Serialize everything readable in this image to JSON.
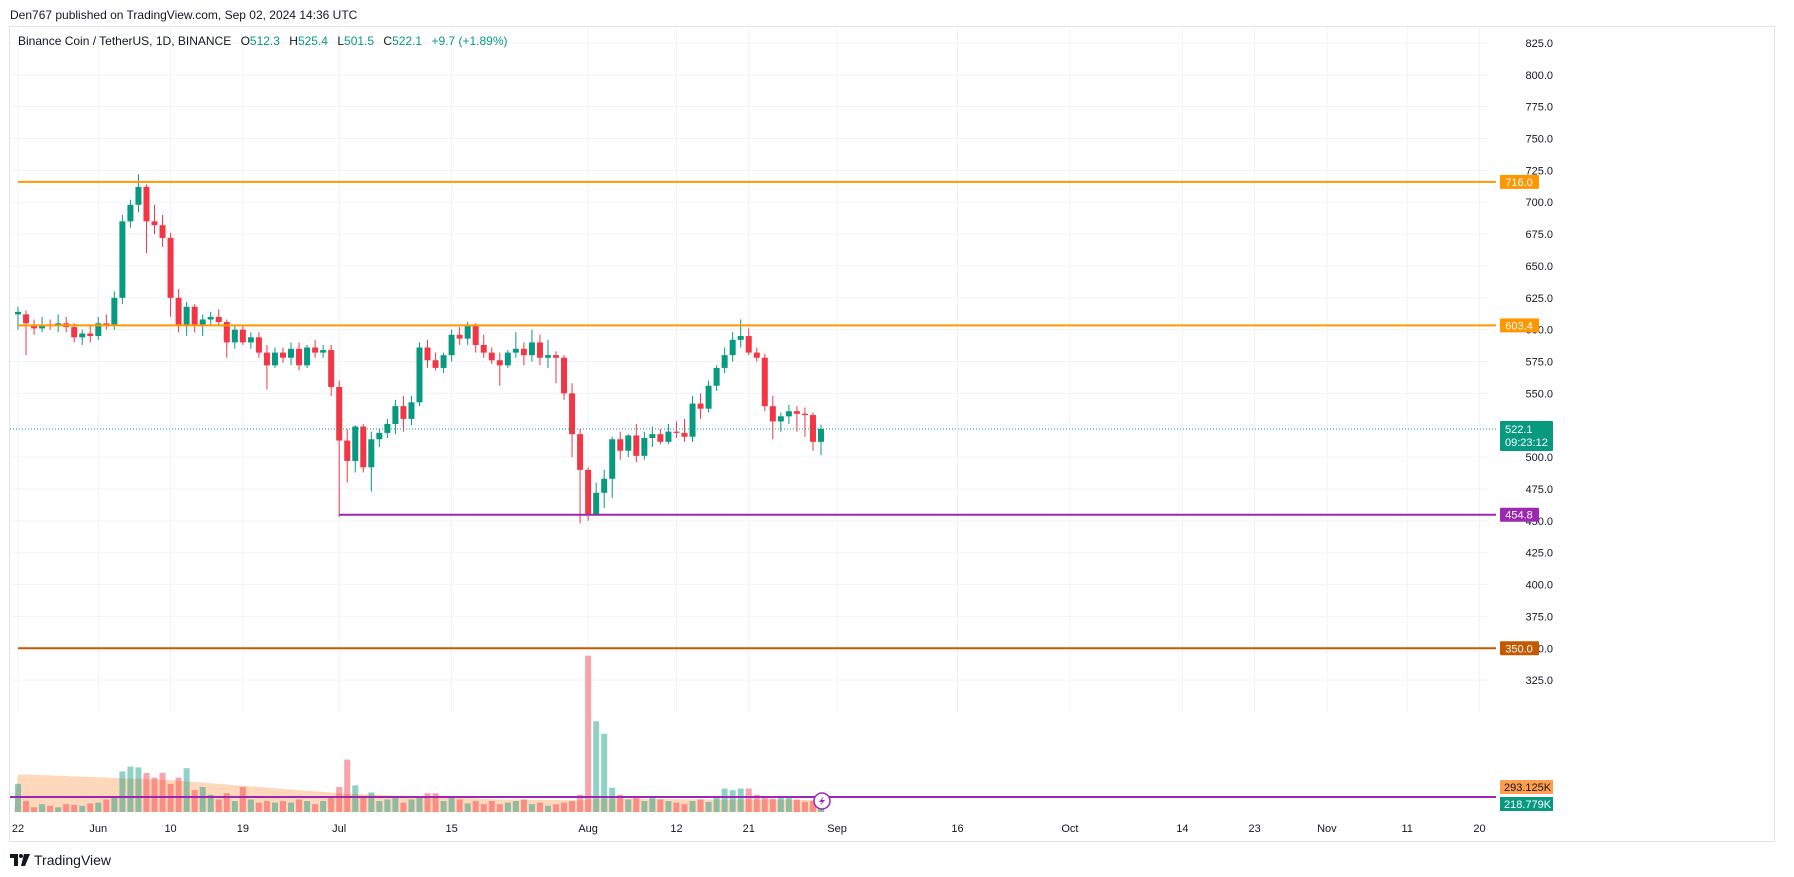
{
  "header": {
    "published_text": "Den767 published on TradingView.com, Sep 02, 2024 14:36 UTC"
  },
  "legend": {
    "symbol": "Binance Coin / TetherUS, 1D, BINANCE",
    "o_label": "O",
    "o_value": "512.3",
    "h_label": "H",
    "h_value": "525.4",
    "l_label": "L",
    "l_value": "501.5",
    "c_label": "C",
    "c_value": "522.1",
    "change": "+9.7 (+1.89%)"
  },
  "footer": {
    "brand": "TradingView"
  },
  "colors": {
    "up": "#089981",
    "down": "#f23645",
    "level_orange": "#ff9800",
    "level_purple": "#9c27b0",
    "level_brown": "#c45a00",
    "volume_ma": "#ffcba4",
    "last_price": "#089981",
    "grid": "#f0f3fa"
  },
  "chart_data": {
    "type": "candlestick",
    "title": "Binance Coin / TetherUS, 1D, BINANCE",
    "ylim": [
      300,
      837.5
    ],
    "y_ticks": [
      325,
      350,
      375,
      400,
      425,
      450,
      475,
      500,
      525,
      550,
      575,
      600,
      625,
      650,
      675,
      700,
      725,
      750,
      775,
      800,
      825
    ],
    "y_tick_labels": [
      "325.0",
      "350.0",
      "375.0",
      "400.0",
      "425.0",
      "450.0",
      "475.0",
      "500.0",
      "525.0",
      "550.0",
      "575.0",
      "600.0",
      "625.0",
      "650.0",
      "675.0",
      "700.0",
      "725.0",
      "750.0",
      "775.0",
      "800.0",
      "825.0"
    ],
    "x_ticks": [
      {
        "label": "22",
        "index": 0
      },
      {
        "label": "Jun",
        "index": 10
      },
      {
        "label": "10",
        "index": 19
      },
      {
        "label": "19",
        "index": 28
      },
      {
        "label": "Jul",
        "index": 40
      },
      {
        "label": "15",
        "index": 54
      },
      {
        "label": "Aug",
        "index": 71
      },
      {
        "label": "12",
        "index": 82
      },
      {
        "label": "21",
        "index": 91
      },
      {
        "label": "Sep",
        "index": 102
      },
      {
        "label": "16",
        "index": 117
      },
      {
        "label": "Oct",
        "index": 131
      },
      {
        "label": "14",
        "index": 145
      },
      {
        "label": "23",
        "index": 154
      },
      {
        "label": "Nov",
        "index": 163
      },
      {
        "label": "11",
        "index": 173
      },
      {
        "label": "20",
        "index": 182
      }
    ],
    "candles": [
      {
        "o": 612,
        "h": 618,
        "l": 600,
        "c": 614
      },
      {
        "o": 612,
        "h": 615,
        "l": 580,
        "c": 605
      },
      {
        "o": 604,
        "h": 608,
        "l": 596,
        "c": 601
      },
      {
        "o": 601,
        "h": 610,
        "l": 598,
        "c": 604
      },
      {
        "o": 604,
        "h": 608,
        "l": 600,
        "c": 603
      },
      {
        "o": 603,
        "h": 612,
        "l": 598,
        "c": 605
      },
      {
        "o": 605,
        "h": 610,
        "l": 598,
        "c": 602
      },
      {
        "o": 602,
        "h": 605,
        "l": 590,
        "c": 594
      },
      {
        "o": 594,
        "h": 600,
        "l": 588,
        "c": 597
      },
      {
        "o": 597,
        "h": 604,
        "l": 590,
        "c": 595
      },
      {
        "o": 595,
        "h": 610,
        "l": 592,
        "c": 605
      },
      {
        "o": 605,
        "h": 612,
        "l": 600,
        "c": 603
      },
      {
        "o": 603,
        "h": 630,
        "l": 600,
        "c": 625
      },
      {
        "o": 625,
        "h": 690,
        "l": 620,
        "c": 685
      },
      {
        "o": 685,
        "h": 702,
        "l": 680,
        "c": 698
      },
      {
        "o": 698,
        "h": 722,
        "l": 692,
        "c": 712
      },
      {
        "o": 712,
        "h": 714,
        "l": 660,
        "c": 685
      },
      {
        "o": 685,
        "h": 698,
        "l": 675,
        "c": 682
      },
      {
        "o": 682,
        "h": 690,
        "l": 665,
        "c": 672
      },
      {
        "o": 672,
        "h": 676,
        "l": 610,
        "c": 625
      },
      {
        "o": 625,
        "h": 632,
        "l": 598,
        "c": 603
      },
      {
        "o": 603,
        "h": 622,
        "l": 595,
        "c": 618
      },
      {
        "o": 618,
        "h": 620,
        "l": 598,
        "c": 603
      },
      {
        "o": 603,
        "h": 612,
        "l": 595,
        "c": 608
      },
      {
        "o": 608,
        "h": 614,
        "l": 604,
        "c": 610
      },
      {
        "o": 610,
        "h": 616,
        "l": 604,
        "c": 606
      },
      {
        "o": 606,
        "h": 608,
        "l": 578,
        "c": 590
      },
      {
        "o": 590,
        "h": 604,
        "l": 585,
        "c": 600
      },
      {
        "o": 600,
        "h": 604,
        "l": 588,
        "c": 590
      },
      {
        "o": 590,
        "h": 598,
        "l": 585,
        "c": 594
      },
      {
        "o": 594,
        "h": 598,
        "l": 578,
        "c": 582
      },
      {
        "o": 582,
        "h": 588,
        "l": 553,
        "c": 572
      },
      {
        "o": 572,
        "h": 586,
        "l": 570,
        "c": 582
      },
      {
        "o": 582,
        "h": 586,
        "l": 574,
        "c": 578
      },
      {
        "o": 578,
        "h": 590,
        "l": 572,
        "c": 585
      },
      {
        "o": 585,
        "h": 590,
        "l": 568,
        "c": 572
      },
      {
        "o": 572,
        "h": 588,
        "l": 570,
        "c": 586
      },
      {
        "o": 586,
        "h": 592,
        "l": 578,
        "c": 582
      },
      {
        "o": 582,
        "h": 588,
        "l": 578,
        "c": 584
      },
      {
        "o": 584,
        "h": 588,
        "l": 548,
        "c": 555
      },
      {
        "o": 555,
        "h": 560,
        "l": 453,
        "c": 513
      },
      {
        "o": 513,
        "h": 522,
        "l": 480,
        "c": 497
      },
      {
        "o": 497,
        "h": 525,
        "l": 488,
        "c": 524
      },
      {
        "o": 524,
        "h": 526,
        "l": 488,
        "c": 492
      },
      {
        "o": 492,
        "h": 520,
        "l": 473,
        "c": 514
      },
      {
        "o": 514,
        "h": 522,
        "l": 508,
        "c": 519
      },
      {
        "o": 519,
        "h": 530,
        "l": 515,
        "c": 526
      },
      {
        "o": 526,
        "h": 545,
        "l": 518,
        "c": 540
      },
      {
        "o": 540,
        "h": 548,
        "l": 520,
        "c": 530
      },
      {
        "o": 530,
        "h": 548,
        "l": 525,
        "c": 543
      },
      {
        "o": 543,
        "h": 590,
        "l": 540,
        "c": 586
      },
      {
        "o": 586,
        "h": 592,
        "l": 570,
        "c": 576
      },
      {
        "o": 576,
        "h": 582,
        "l": 568,
        "c": 570
      },
      {
        "o": 570,
        "h": 582,
        "l": 566,
        "c": 580
      },
      {
        "o": 580,
        "h": 600,
        "l": 575,
        "c": 596
      },
      {
        "o": 596,
        "h": 602,
        "l": 588,
        "c": 593
      },
      {
        "o": 593,
        "h": 606,
        "l": 588,
        "c": 604
      },
      {
        "o": 604,
        "h": 605,
        "l": 582,
        "c": 588
      },
      {
        "o": 588,
        "h": 596,
        "l": 578,
        "c": 582
      },
      {
        "o": 582,
        "h": 586,
        "l": 573,
        "c": 576
      },
      {
        "o": 576,
        "h": 582,
        "l": 556,
        "c": 572
      },
      {
        "o": 572,
        "h": 584,
        "l": 570,
        "c": 582
      },
      {
        "o": 582,
        "h": 598,
        "l": 578,
        "c": 585
      },
      {
        "o": 585,
        "h": 590,
        "l": 572,
        "c": 580
      },
      {
        "o": 580,
        "h": 600,
        "l": 575,
        "c": 590
      },
      {
        "o": 590,
        "h": 596,
        "l": 572,
        "c": 578
      },
      {
        "o": 578,
        "h": 592,
        "l": 570,
        "c": 580
      },
      {
        "o": 580,
        "h": 583,
        "l": 558,
        "c": 578
      },
      {
        "o": 578,
        "h": 580,
        "l": 545,
        "c": 550
      },
      {
        "o": 550,
        "h": 558,
        "l": 500,
        "c": 518
      },
      {
        "o": 518,
        "h": 522,
        "l": 448,
        "c": 490
      },
      {
        "o": 490,
        "h": 492,
        "l": 450,
        "c": 455
      },
      {
        "o": 455,
        "h": 480,
        "l": 454,
        "c": 472
      },
      {
        "o": 472,
        "h": 490,
        "l": 460,
        "c": 483
      },
      {
        "o": 483,
        "h": 516,
        "l": 468,
        "c": 514
      },
      {
        "o": 514,
        "h": 520,
        "l": 498,
        "c": 505
      },
      {
        "o": 505,
        "h": 518,
        "l": 500,
        "c": 517
      },
      {
        "o": 517,
        "h": 526,
        "l": 496,
        "c": 501
      },
      {
        "o": 501,
        "h": 520,
        "l": 498,
        "c": 515
      },
      {
        "o": 515,
        "h": 524,
        "l": 508,
        "c": 518
      },
      {
        "o": 518,
        "h": 522,
        "l": 510,
        "c": 512
      },
      {
        "o": 512,
        "h": 526,
        "l": 510,
        "c": 520
      },
      {
        "o": 520,
        "h": 528,
        "l": 515,
        "c": 519
      },
      {
        "o": 519,
        "h": 530,
        "l": 512,
        "c": 516
      },
      {
        "o": 516,
        "h": 548,
        "l": 512,
        "c": 542
      },
      {
        "o": 542,
        "h": 550,
        "l": 530,
        "c": 538
      },
      {
        "o": 538,
        "h": 560,
        "l": 535,
        "c": 556
      },
      {
        "o": 556,
        "h": 572,
        "l": 552,
        "c": 570
      },
      {
        "o": 570,
        "h": 586,
        "l": 566,
        "c": 580
      },
      {
        "o": 580,
        "h": 598,
        "l": 575,
        "c": 592
      },
      {
        "o": 592,
        "h": 608,
        "l": 586,
        "c": 595
      },
      {
        "o": 595,
        "h": 601,
        "l": 580,
        "c": 582
      },
      {
        "o": 582,
        "h": 586,
        "l": 575,
        "c": 578
      },
      {
        "o": 578,
        "h": 581,
        "l": 536,
        "c": 540
      },
      {
        "o": 540,
        "h": 548,
        "l": 514,
        "c": 528
      },
      {
        "o": 528,
        "h": 535,
        "l": 520,
        "c": 532
      },
      {
        "o": 532,
        "h": 541,
        "l": 526,
        "c": 536
      },
      {
        "o": 536,
        "h": 540,
        "l": 520,
        "c": 534
      },
      {
        "o": 534,
        "h": 539,
        "l": 516,
        "c": 533
      },
      {
        "o": 533,
        "h": 535,
        "l": 505,
        "c": 512
      },
      {
        "o": 512,
        "h": 525.4,
        "l": 501.5,
        "c": 522.1
      }
    ],
    "volumes": [
      180,
      70,
      30,
      50,
      40,
      30,
      50,
      45,
      40,
      55,
      60,
      80,
      90,
      260,
      290,
      285,
      250,
      220,
      250,
      180,
      220,
      280,
      140,
      160,
      110,
      80,
      120,
      70,
      160,
      80,
      60,
      70,
      60,
      70,
      60,
      80,
      70,
      50,
      70,
      90,
      160,
      335,
      170,
      100,
      125,
      70,
      80,
      90,
      60,
      80,
      90,
      120,
      120,
      70,
      100,
      80,
      55,
      70,
      50,
      70,
      50,
      60,
      70,
      80,
      50,
      60,
      40,
      50,
      60,
      70,
      110,
      1000,
      580,
      500,
      155,
      110,
      80,
      90,
      70,
      90,
      80,
      70,
      60,
      50,
      70,
      80,
      65,
      90,
      150,
      140,
      150,
      150,
      110,
      90,
      85,
      90,
      100,
      80,
      65,
      70,
      60
    ],
    "volume_ma": [
      240,
      240,
      238,
      236,
      234,
      232,
      230,
      228,
      226,
      224,
      222,
      220,
      218,
      216,
      214,
      212,
      210,
      208,
      206,
      204,
      200,
      196,
      192,
      188,
      184,
      180,
      176,
      172,
      168,
      164,
      160,
      156,
      152,
      148,
      144,
      140,
      136,
      132,
      128,
      124,
      120,
      118,
      116,
      114,
      112,
      110,
      108,
      106,
      104,
      102,
      100,
      98,
      96,
      94,
      92,
      90,
      88,
      86,
      84,
      82,
      80,
      80,
      80,
      79,
      78,
      78,
      77,
      77,
      76,
      76,
      75,
      80,
      84,
      86,
      86,
      86,
      85,
      85,
      84,
      84,
      83,
      83,
      82,
      82,
      81,
      81,
      80,
      80,
      80,
      80,
      80,
      80,
      79,
      79,
      79,
      78,
      78,
      77,
      77,
      76,
      76
    ],
    "volume_max": 1100,
    "levels": [
      {
        "name": "resistance-716",
        "value": 716.0,
        "label": "716.0",
        "color": "#ff9800",
        "start_index": 0
      },
      {
        "name": "resistance-603",
        "value": 603.4,
        "label": "603.4",
        "color": "#ff9800",
        "start_index": 0
      },
      {
        "name": "support-454",
        "value": 454.8,
        "label": "454.8",
        "color": "#9c27b0",
        "start_index": 40
      },
      {
        "name": "support-350",
        "value": 350.0,
        "label": "350.0",
        "color": "#c45a00",
        "start_index": 0
      }
    ],
    "last_price": {
      "value": 522.1,
      "label": "522.1",
      "countdown": "09:23:12"
    },
    "volume_labels": {
      "volume_ma": "293.125K",
      "volume": "218.779K"
    }
  }
}
